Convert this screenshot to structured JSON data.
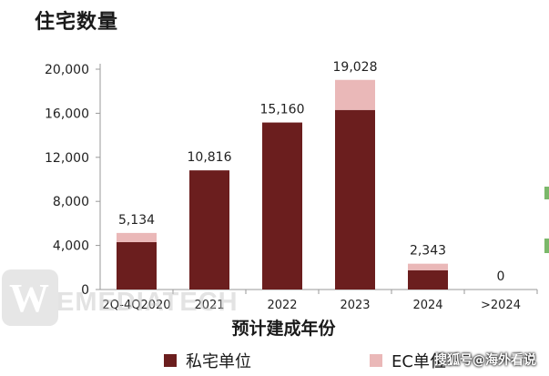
{
  "chart_data": {
    "type": "bar",
    "title": "住宅数量",
    "xlabel": "预计建成年份",
    "categories": [
      "2Q-4Q2020",
      "2021",
      "2022",
      "2023",
      "2024",
      ">2024"
    ],
    "series": [
      {
        "name": "私宅单位",
        "values": [
          4300,
          10816,
          15160,
          16300,
          1750,
          0
        ],
        "color": "#6b1e1e"
      },
      {
        "name": "EC单位",
        "values": [
          834,
          0,
          0,
          2728,
          593,
          0
        ],
        "color": "#eab8b8"
      }
    ],
    "totals": [
      5134,
      10816,
      15160,
      19028,
      2343,
      0
    ],
    "total_labels": [
      "5,134",
      "10,816",
      "15,160",
      "19,028",
      "2,343",
      "0"
    ],
    "ylim": [
      0,
      20000
    ],
    "yticks": [
      0,
      4000,
      8000,
      12000,
      16000,
      20000
    ],
    "ytick_labels": [
      "0",
      "4,000",
      "8,000",
      "12,000",
      "16,000",
      "20,000"
    ],
    "stacked": true,
    "legend_position": "bottom"
  },
  "watermark": {
    "logo_letter": "W",
    "text": "EMEDIATECH"
  },
  "credit": "搜狐号@海外看说"
}
